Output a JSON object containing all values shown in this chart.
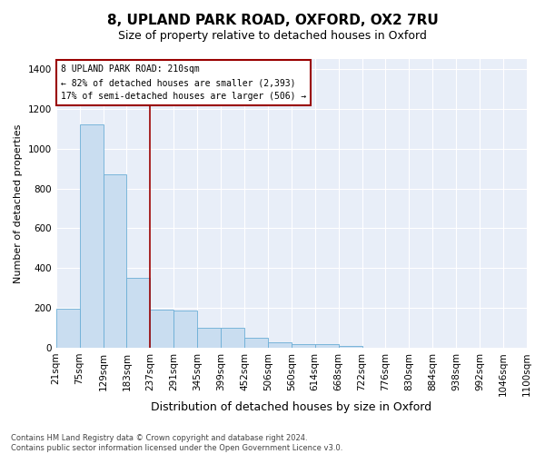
{
  "title": "8, UPLAND PARK ROAD, OXFORD, OX2 7RU",
  "subtitle": "Size of property relative to detached houses in Oxford",
  "xlabel": "Distribution of detached houses by size in Oxford",
  "ylabel": "Number of detached properties",
  "bin_labels": [
    "21sqm",
    "75sqm",
    "129sqm",
    "183sqm",
    "237sqm",
    "291sqm",
    "345sqm",
    "399sqm",
    "452sqm",
    "506sqm",
    "560sqm",
    "614sqm",
    "668sqm",
    "722sqm",
    "776sqm",
    "830sqm",
    "884sqm",
    "938sqm",
    "992sqm",
    "1046sqm",
    "1100sqm"
  ],
  "bar_heights": [
    195,
    1120,
    870,
    350,
    190,
    185,
    100,
    100,
    50,
    25,
    20,
    20,
    10,
    0,
    0,
    0,
    0,
    0,
    0,
    0
  ],
  "bar_color": "#c9ddf0",
  "bar_edge_color": "#6baed6",
  "vline_position": 3.5,
  "vline_color": "#990000",
  "annotation_text": "8 UPLAND PARK ROAD: 210sqm\n← 82% of detached houses are smaller (2,393)\n17% of semi-detached houses are larger (506) →",
  "annotation_box_facecolor": "#ffffff",
  "annotation_box_edgecolor": "#990000",
  "footnote_line1": "Contains HM Land Registry data © Crown copyright and database right 2024.",
  "footnote_line2": "Contains public sector information licensed under the Open Government Licence v3.0.",
  "ylim": [
    0,
    1450
  ],
  "yticks": [
    0,
    200,
    400,
    600,
    800,
    1000,
    1200,
    1400
  ],
  "background_color": "#e8eef8",
  "fig_background_color": "#ffffff",
  "title_fontsize": 11,
  "subtitle_fontsize": 9,
  "xlabel_fontsize": 9,
  "ylabel_fontsize": 8,
  "tick_fontsize": 7.5,
  "annotation_fontsize": 7,
  "footnote_fontsize": 6
}
